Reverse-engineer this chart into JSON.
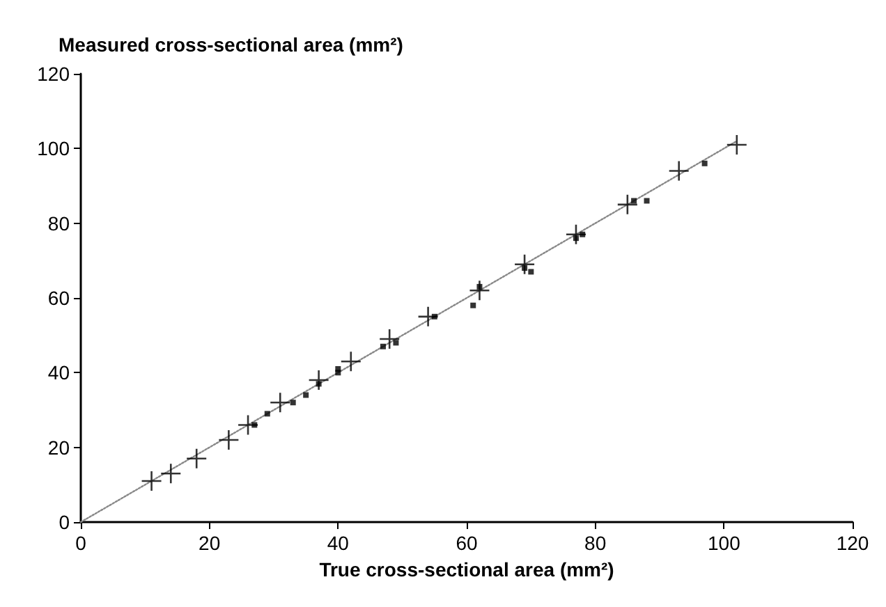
{
  "chart_data": {
    "type": "scatter",
    "xlabel": "True cross-sectional area (mm²)",
    "ylabel": "Measured cross-sectional area (mm²)",
    "xlim": [
      0,
      120
    ],
    "xticks": [
      0,
      20,
      40,
      60,
      80,
      100,
      120
    ],
    "ylim": [
      0,
      120
    ],
    "yticks": [
      0,
      20,
      40,
      60,
      80,
      100,
      120
    ],
    "grid": false,
    "series": [
      {
        "type": "line",
        "color": "#888888",
        "marker": "none",
        "line_style": "dotted",
        "x": [
          0,
          102
        ],
        "values": [
          0,
          102
        ]
      },
      {
        "color": "#000000",
        "marker": "cross",
        "x": [
          11,
          14,
          18,
          23,
          26,
          31,
          37,
          42,
          48,
          54,
          62,
          69,
          77,
          85,
          93,
          102
        ],
        "values": [
          11,
          13,
          17,
          22,
          26,
          32,
          38,
          43,
          49,
          55,
          62,
          69,
          77,
          85,
          94,
          101
        ]
      },
      {
        "color": "#000000",
        "marker": "square",
        "x": [
          27,
          29,
          33,
          35,
          37,
          40,
          40,
          47,
          49,
          55,
          61,
          62,
          70,
          69,
          77,
          78,
          86,
          88,
          97
        ],
        "values": [
          26,
          29,
          32,
          34,
          37,
          40,
          41,
          47,
          48,
          55,
          58,
          63,
          67,
          68,
          76,
          77,
          86,
          86,
          96
        ]
      }
    ]
  }
}
